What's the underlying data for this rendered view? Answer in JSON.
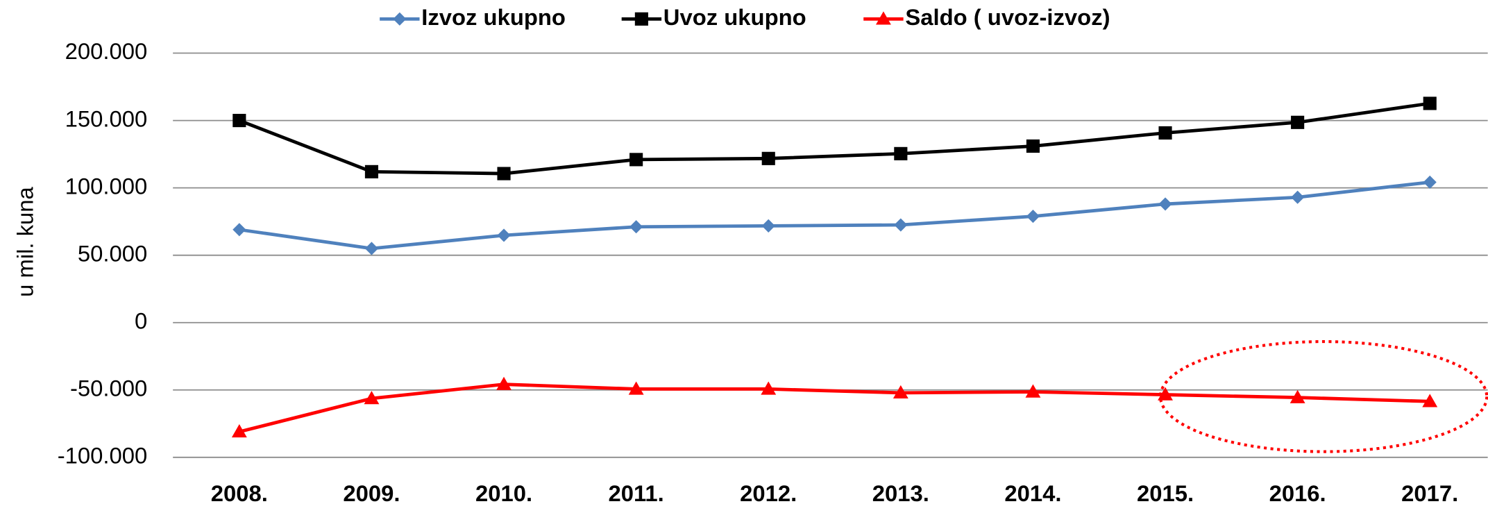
{
  "chart_data": {
    "type": "line",
    "ylabel": "u mil. kuna",
    "categories": [
      "2008.",
      "2009.",
      "2010.",
      "2011.",
      "2012.",
      "2013.",
      "2014.",
      "2015.",
      "2016.",
      "2017."
    ],
    "series": [
      {
        "name": "Izvoz ukupno",
        "color": "#4f81bd",
        "marker": "diamond",
        "values": [
          69000,
          55000,
          64800,
          71100,
          71800,
          72500,
          78900,
          88000,
          93000,
          104200
        ]
      },
      {
        "name": "Uvoz ukupno",
        "color": "#000000",
        "marker": "square",
        "values": [
          150000,
          112000,
          110600,
          121000,
          121800,
          125400,
          131000,
          140800,
          148600,
          162700
        ]
      },
      {
        "name": "Saldo ( uvoz-izvoz)",
        "color": "#ff0000",
        "marker": "triangle",
        "values": [
          -81000,
          -56300,
          -45800,
          -49300,
          -49300,
          -52100,
          -51400,
          -53500,
          -55600,
          -58500
        ]
      }
    ],
    "ylim": [
      -100000,
      200000
    ],
    "yticks": [
      {
        "value": -100000,
        "label": "-100.000"
      },
      {
        "value": -50000,
        "label": "-50.000"
      },
      0,
      {
        "value": 50000,
        "label": "50.000"
      },
      {
        "value": 100000,
        "label": "100.000"
      },
      {
        "value": 150000,
        "label": "150.000"
      },
      {
        "value": 200000,
        "label": "200.000"
      }
    ],
    "grid": true,
    "legend": "top"
  }
}
